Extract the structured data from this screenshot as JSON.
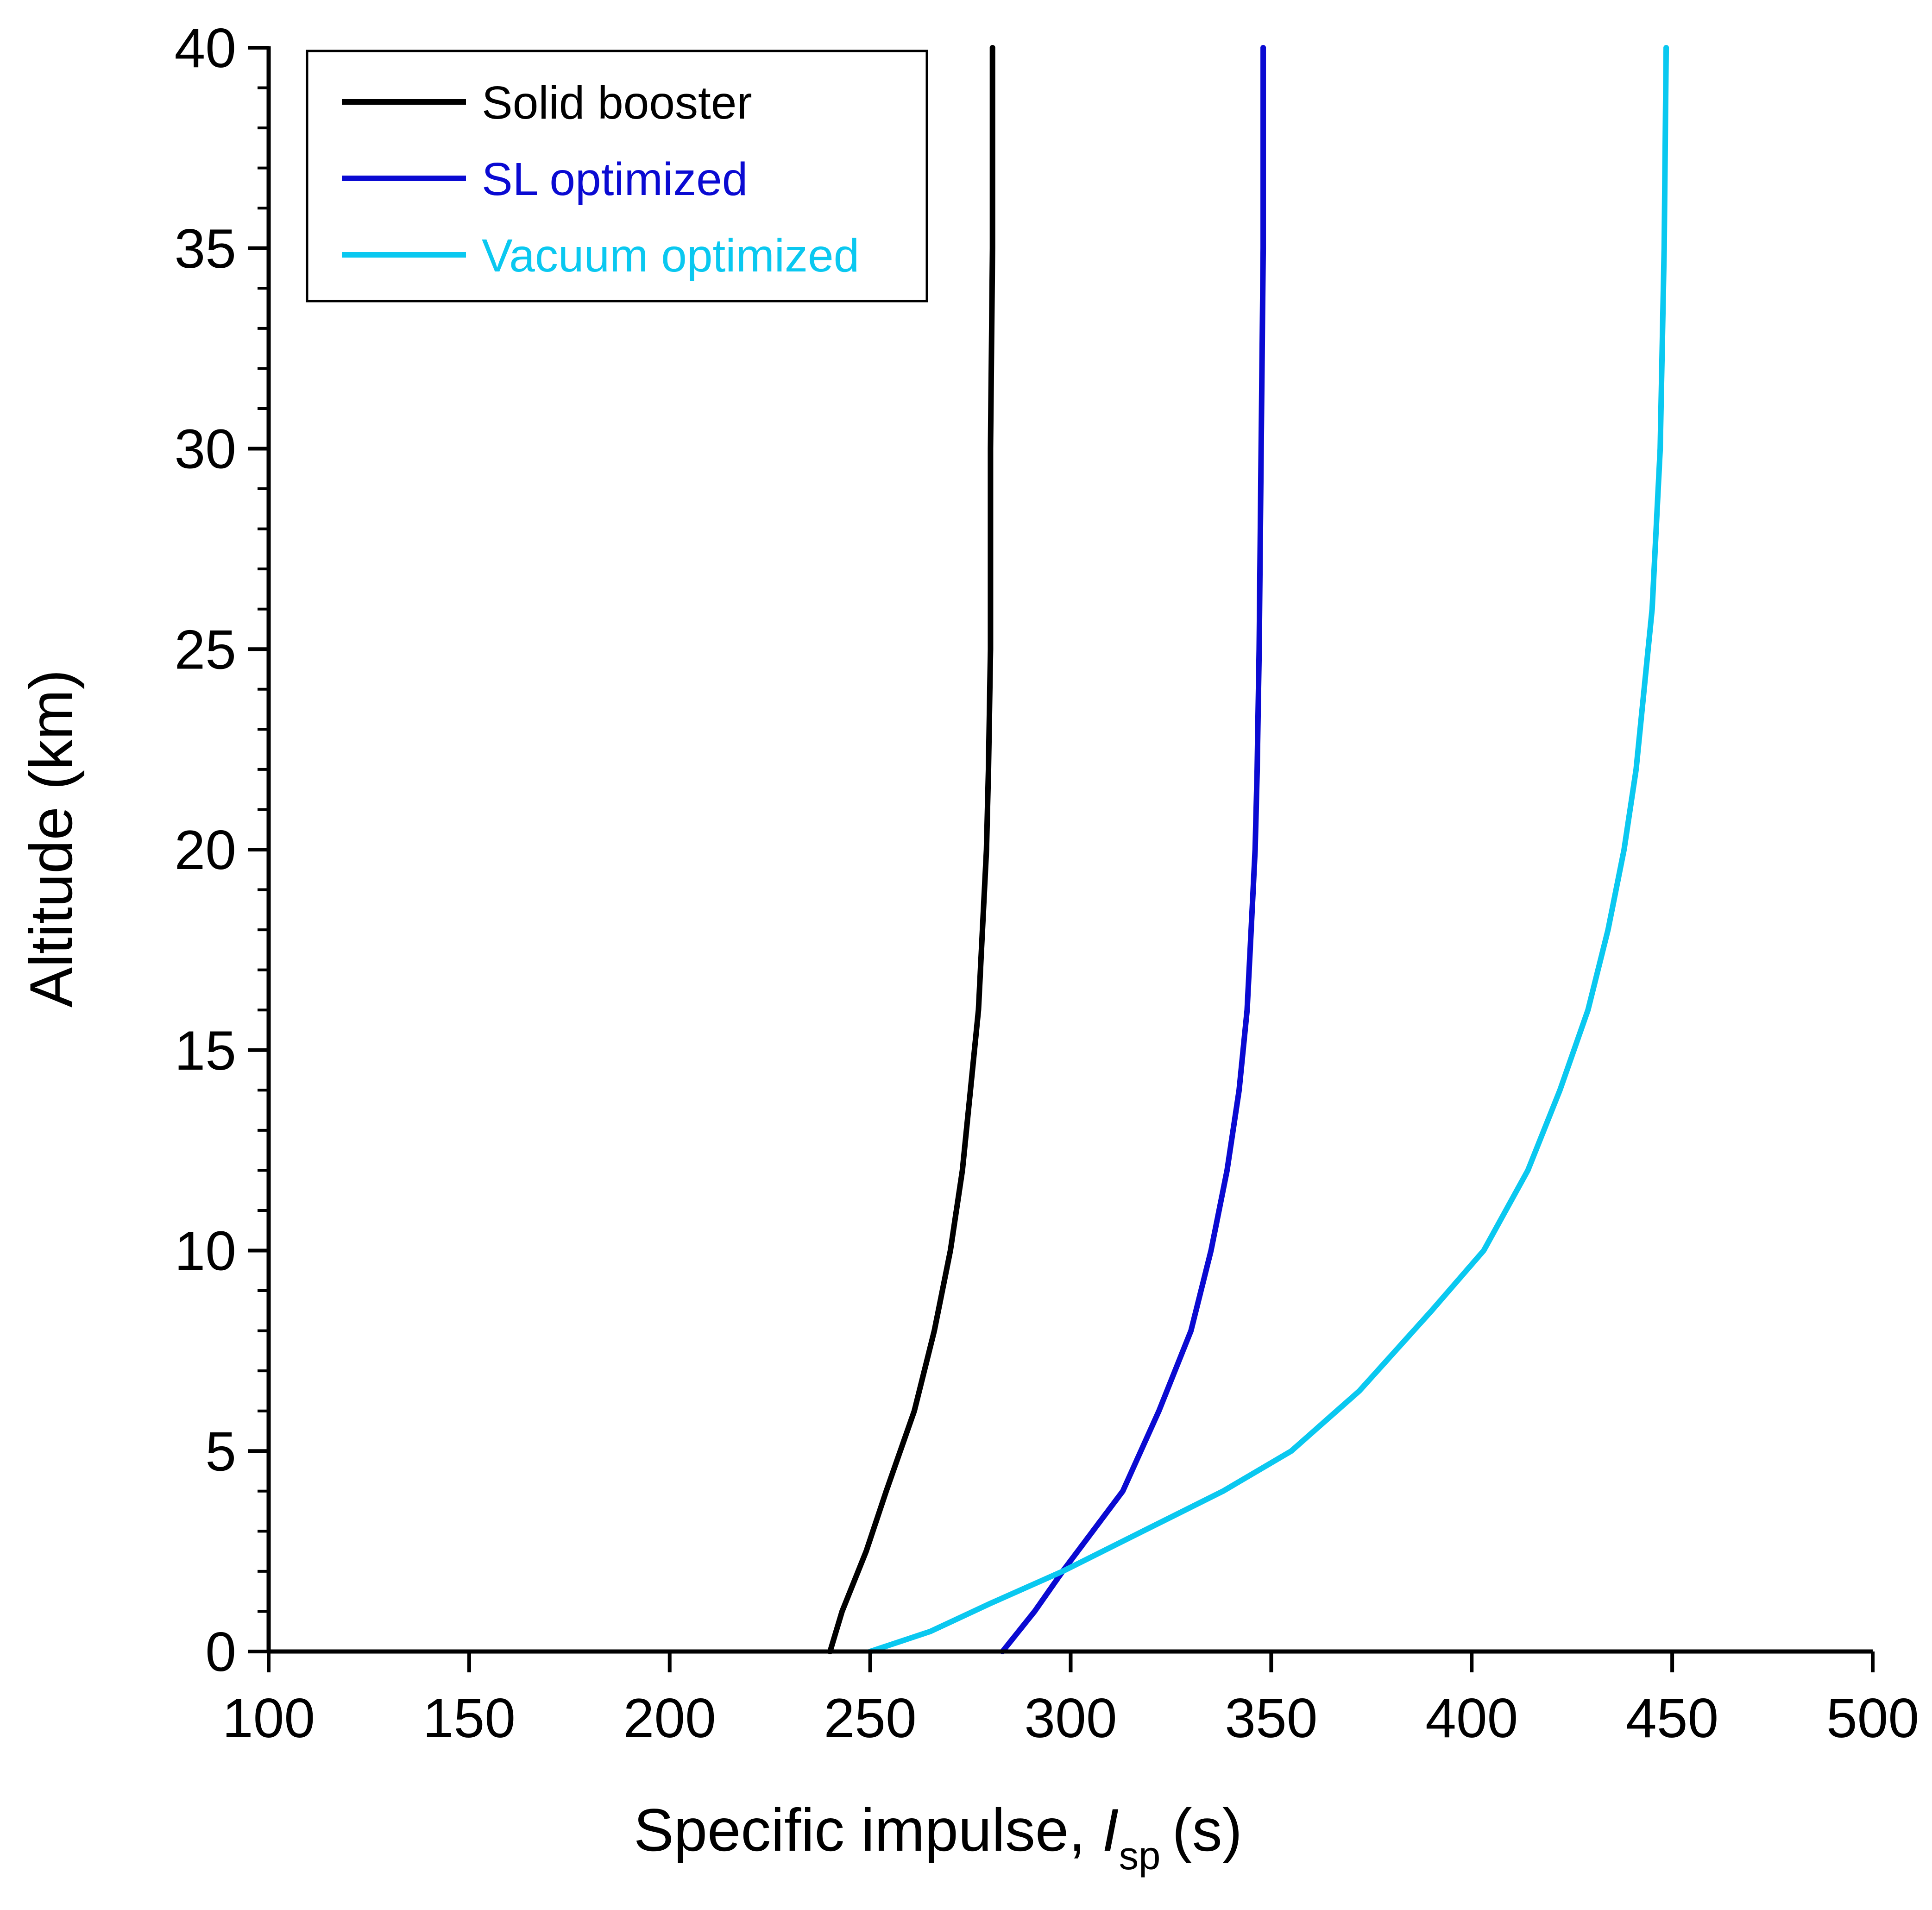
{
  "chart_data": {
    "type": "line",
    "title": "",
    "xlabel": {
      "main": "Specific impulse,",
      "symbol": "I",
      "subscript": "sp",
      "unit": "(s)"
    },
    "ylabel": "Altitude (km)",
    "xlim": [
      100,
      500
    ],
    "ylim": [
      0,
      40
    ],
    "x_ticks": [
      100,
      150,
      200,
      250,
      300,
      350,
      400,
      450,
      500
    ],
    "y_ticks": [
      0,
      5,
      10,
      15,
      20,
      25,
      30,
      35,
      40
    ],
    "y_minor_step": 1,
    "grid": false,
    "legend_position": "top-left",
    "series": [
      {
        "name": "Solid booster",
        "color": "#000000",
        "points": [
          [
            240,
            0
          ],
          [
            243,
            1
          ],
          [
            249,
            2.5
          ],
          [
            254,
            4
          ],
          [
            261,
            6
          ],
          [
            266,
            8
          ],
          [
            270,
            10
          ],
          [
            273,
            12
          ],
          [
            275,
            14
          ],
          [
            277,
            16
          ],
          [
            278,
            18
          ],
          [
            279,
            20
          ],
          [
            279.5,
            22
          ],
          [
            280,
            25
          ],
          [
            280,
            30
          ],
          [
            280.5,
            35
          ],
          [
            280.5,
            40
          ]
        ]
      },
      {
        "name": "SL optimized",
        "color": "#0a0ad2",
        "points": [
          [
            283,
            0
          ],
          [
            291,
            1
          ],
          [
            298,
            2
          ],
          [
            313,
            4
          ],
          [
            322,
            6
          ],
          [
            330,
            8
          ],
          [
            335,
            10
          ],
          [
            339,
            12
          ],
          [
            342,
            14
          ],
          [
            344,
            16
          ],
          [
            345,
            18
          ],
          [
            346,
            20
          ],
          [
            346.5,
            22
          ],
          [
            347,
            25
          ],
          [
            347.5,
            30
          ],
          [
            348,
            35
          ],
          [
            348,
            40
          ]
        ]
      },
      {
        "name": "Vacuum optimized",
        "color": "#0ac8f0",
        "points": [
          [
            250,
            0
          ],
          [
            265,
            0.5
          ],
          [
            280,
            1.2
          ],
          [
            298,
            2
          ],
          [
            318,
            3
          ],
          [
            338,
            4
          ],
          [
            355,
            5
          ],
          [
            372,
            6.5
          ],
          [
            390,
            8.5
          ],
          [
            403,
            10
          ],
          [
            414,
            12
          ],
          [
            422,
            14
          ],
          [
            429,
            16
          ],
          [
            434,
            18
          ],
          [
            438,
            20
          ],
          [
            441,
            22
          ],
          [
            443,
            24
          ],
          [
            445,
            26
          ],
          [
            447,
            30
          ],
          [
            448,
            35
          ],
          [
            448.5,
            40
          ]
        ]
      }
    ]
  }
}
